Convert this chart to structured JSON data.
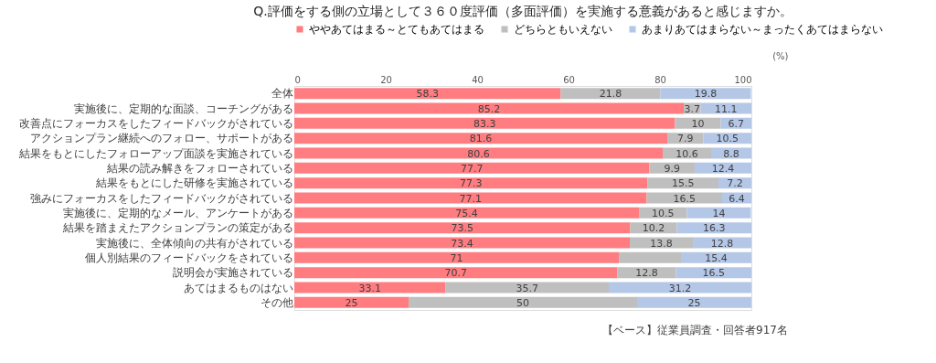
{
  "chart_data": {
    "type": "bar",
    "orientation": "horizontal",
    "stacked": true,
    "title": "Q.評価をする側の立場として３６０度評価（多面評価）を実施する意義があると感じますか。",
    "xlabel": "(%)",
    "categories": [
      "全体",
      "実施後に、定期的な面談、コーチングがある",
      "改善点にフォーカスをしたフィードバックがされている",
      "アクションプラン継続へのフォロー、サポートがある",
      "結果をもとにしたフォローアップ面談を実施されている",
      "結果の読み解きをフォローされている",
      "結果をもとにした研修を実施されている",
      "強みにフォーカスをしたフィードバックがされている",
      "実施後に、定期的なメール、アンケートがある",
      "結果を踏まえたアクションプランの策定がある",
      "実施後に、全体傾向の共有がされている",
      "個人別結果のフィードバックをされている",
      "説明会が実施されている",
      "あてはまるものはない",
      "その他"
    ],
    "series": [
      {
        "name": "ややあてはまる～とてもあてはまる",
        "color": "#ff7c80",
        "values": [
          58.3,
          85.2,
          83.3,
          81.6,
          80.6,
          77.7,
          77.3,
          77.1,
          75.4,
          73.5,
          73.4,
          71,
          70.7,
          33.1,
          25
        ],
        "value_labels": [
          "58.3",
          "85.2",
          "83.3",
          "81.6",
          "80.6",
          "77.7",
          "77.3",
          "77.1",
          "75.4",
          "73.5",
          "73.4",
          "71",
          "70.7",
          "33.1",
          "25"
        ]
      },
      {
        "name": "どちらともいえない",
        "color": "#bfbfbf",
        "values": [
          21.8,
          3.7,
          10,
          7.9,
          10.6,
          9.9,
          15.5,
          16.5,
          10.5,
          10.2,
          13.8,
          13.6,
          12.8,
          35.7,
          50
        ],
        "value_labels": [
          "21.8",
          "3.7",
          "10",
          "7.9",
          "10.6",
          "9.9",
          "15.5",
          "16.5",
          "10.5",
          "10.2",
          "13.8",
          null,
          "12.8",
          "35.7",
          "50"
        ]
      },
      {
        "name": "あまりあてはまらない～まったくあてはまらない",
        "color": "#b4c7e7",
        "values": [
          19.8,
          11.1,
          6.7,
          10.5,
          8.8,
          12.4,
          7.2,
          6.4,
          14,
          16.3,
          12.8,
          15.4,
          16.5,
          31.2,
          25
        ],
        "value_labels": [
          "19.8",
          "11.1",
          "6.7",
          "10.5",
          "8.8",
          "12.4",
          "7.2",
          "6.4",
          "14",
          "16.3",
          "12.8",
          "15.4",
          "16.5",
          "31.2",
          "25"
        ]
      }
    ],
    "xlim": [
      0,
      100
    ],
    "xticks": [
      0,
      20,
      40,
      60,
      80,
      100
    ],
    "legend": "top",
    "grid": false,
    "annotations": [
      "【ベース】従業員調査・回答者917名"
    ]
  }
}
